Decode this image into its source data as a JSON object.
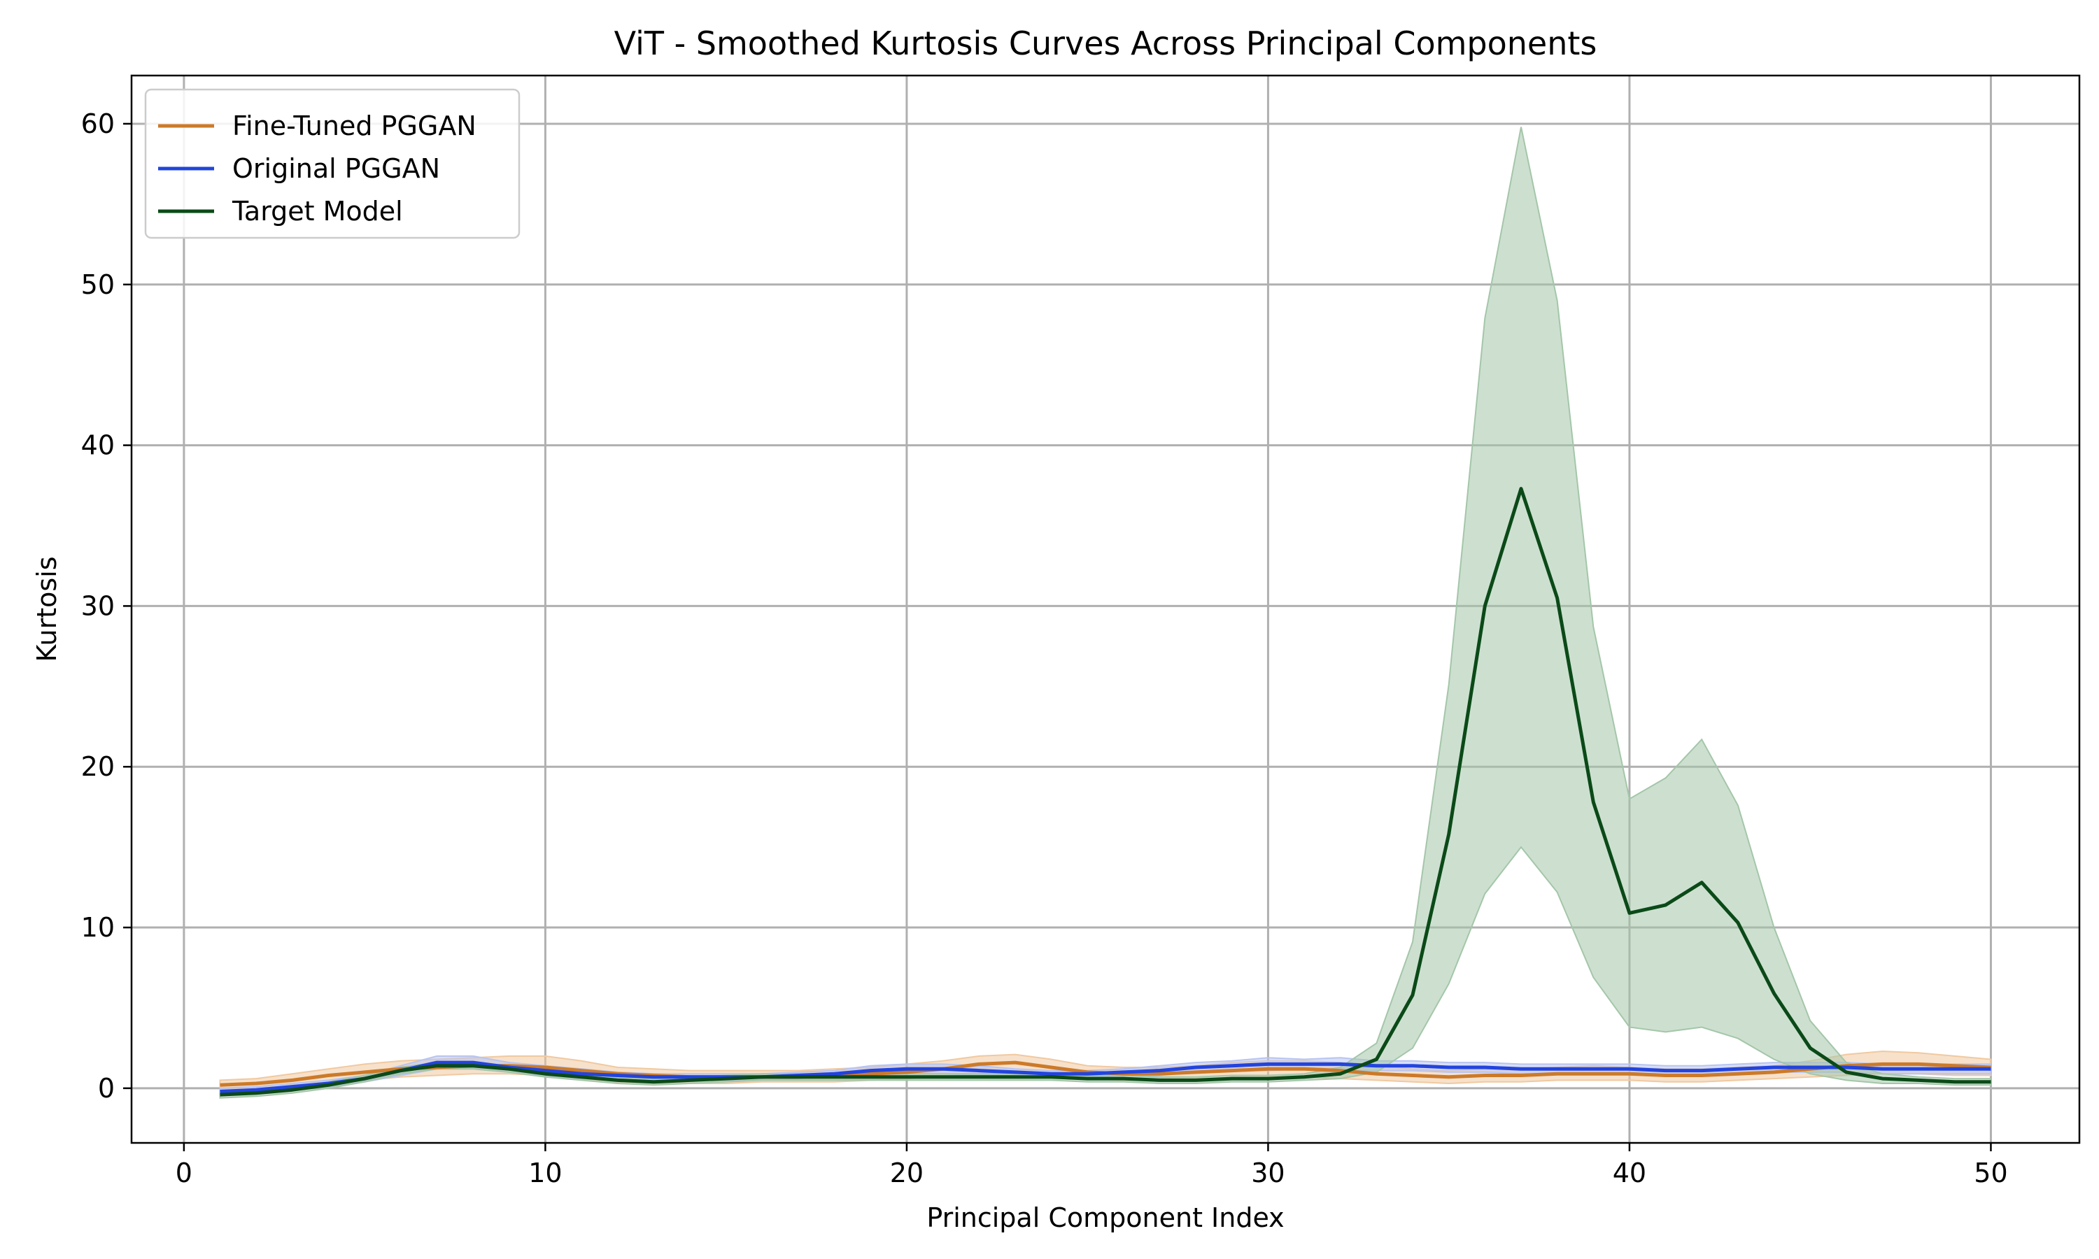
{
  "chart_data": {
    "type": "line",
    "title": "ViT - Smoothed Kurtosis Curves Across Principal Components",
    "xlabel": "Principal Component Index",
    "ylabel": "Kurtosis",
    "xlim": [
      -1.45,
      52.45
    ],
    "ylim": [
      -3.4,
      63.0
    ],
    "xticks": [
      0,
      10,
      20,
      30,
      40,
      50
    ],
    "yticks": [
      0,
      10,
      20,
      30,
      40,
      50,
      60
    ],
    "grid": true,
    "legend_position": "upper-left",
    "x": [
      1,
      2,
      3,
      4,
      5,
      6,
      7,
      8,
      9,
      10,
      11,
      12,
      13,
      14,
      15,
      16,
      17,
      18,
      19,
      20,
      21,
      22,
      23,
      24,
      25,
      26,
      27,
      28,
      29,
      30,
      31,
      32,
      33,
      34,
      35,
      36,
      37,
      38,
      39,
      40,
      41,
      42,
      43,
      44,
      45,
      46,
      47,
      48,
      49,
      50
    ],
    "series": [
      {
        "name": "Fine-Tuned PGGAN",
        "color": "#cc7a29",
        "band_color": "#f0c9a0",
        "values": [
          0.2,
          0.3,
          0.5,
          0.8,
          1.0,
          1.2,
          1.3,
          1.4,
          1.4,
          1.3,
          1.1,
          0.9,
          0.8,
          0.7,
          0.7,
          0.7,
          0.7,
          0.8,
          0.9,
          1.0,
          1.2,
          1.5,
          1.6,
          1.3,
          1.0,
          0.9,
          0.9,
          1.0,
          1.1,
          1.2,
          1.2,
          1.1,
          0.9,
          0.8,
          0.7,
          0.8,
          0.8,
          0.9,
          0.9,
          0.9,
          0.8,
          0.8,
          0.9,
          1.0,
          1.2,
          1.4,
          1.5,
          1.5,
          1.4,
          1.3
        ],
        "lower": [
          -0.1,
          0.0,
          0.1,
          0.3,
          0.5,
          0.7,
          0.8,
          0.9,
          0.9,
          0.8,
          0.6,
          0.4,
          0.3,
          0.3,
          0.3,
          0.4,
          0.4,
          0.4,
          0.5,
          0.6,
          0.7,
          0.9,
          1.0,
          0.8,
          0.6,
          0.5,
          0.5,
          0.6,
          0.6,
          0.7,
          0.7,
          0.6,
          0.5,
          0.4,
          0.3,
          0.4,
          0.4,
          0.5,
          0.5,
          0.5,
          0.4,
          0.4,
          0.5,
          0.6,
          0.7,
          0.8,
          0.9,
          0.9,
          0.8,
          0.8
        ],
        "upper": [
          0.5,
          0.6,
          0.9,
          1.2,
          1.5,
          1.7,
          1.8,
          1.9,
          2.0,
          2.0,
          1.7,
          1.3,
          1.2,
          1.1,
          1.1,
          1.1,
          1.1,
          1.2,
          1.3,
          1.5,
          1.7,
          2.0,
          2.1,
          1.8,
          1.4,
          1.3,
          1.3,
          1.4,
          1.6,
          1.7,
          1.7,
          1.6,
          1.4,
          1.2,
          1.1,
          1.2,
          1.2,
          1.3,
          1.4,
          1.3,
          1.2,
          1.2,
          1.3,
          1.4,
          1.7,
          2.1,
          2.3,
          2.2,
          2.0,
          1.8
        ]
      },
      {
        "name": "Original PGGAN",
        "color": "#2244dd",
        "band_color": "#b8c4f0",
        "values": [
          -0.2,
          -0.1,
          0.1,
          0.3,
          0.6,
          1.1,
          1.6,
          1.6,
          1.3,
          1.1,
          0.9,
          0.8,
          0.7,
          0.7,
          0.7,
          0.7,
          0.8,
          0.9,
          1.1,
          1.2,
          1.2,
          1.1,
          1.0,
          0.9,
          0.9,
          1.0,
          1.1,
          1.3,
          1.4,
          1.5,
          1.5,
          1.5,
          1.4,
          1.4,
          1.3,
          1.3,
          1.2,
          1.2,
          1.2,
          1.2,
          1.1,
          1.1,
          1.2,
          1.3,
          1.3,
          1.3,
          1.2,
          1.2,
          1.2,
          1.2
        ],
        "lower": [
          -0.4,
          -0.3,
          -0.1,
          0.1,
          0.4,
          0.8,
          1.2,
          1.2,
          1.0,
          0.8,
          0.6,
          0.6,
          0.5,
          0.5,
          0.5,
          0.5,
          0.6,
          0.7,
          0.8,
          0.9,
          0.9,
          0.8,
          0.8,
          0.7,
          0.7,
          0.8,
          0.8,
          1.0,
          1.1,
          1.1,
          1.2,
          1.1,
          1.1,
          1.1,
          1.0,
          1.0,
          0.9,
          0.9,
          0.9,
          0.9,
          0.8,
          0.8,
          0.9,
          1.0,
          1.0,
          1.0,
          0.9,
          0.9,
          0.9,
          0.9
        ],
        "upper": [
          0.0,
          0.1,
          0.3,
          0.5,
          0.8,
          1.4,
          2.0,
          2.0,
          1.6,
          1.4,
          1.2,
          1.0,
          0.9,
          0.9,
          0.9,
          0.9,
          1.0,
          1.1,
          1.4,
          1.5,
          1.5,
          1.4,
          1.2,
          1.1,
          1.1,
          1.2,
          1.4,
          1.6,
          1.7,
          1.9,
          1.8,
          1.9,
          1.7,
          1.7,
          1.6,
          1.6,
          1.5,
          1.5,
          1.5,
          1.5,
          1.4,
          1.4,
          1.5,
          1.6,
          1.6,
          1.6,
          1.5,
          1.5,
          1.5,
          1.5
        ]
      },
      {
        "name": "Target Model",
        "color": "#0b4a18",
        "band_color": "#a4c6a9",
        "values": [
          -0.4,
          -0.3,
          -0.1,
          0.2,
          0.6,
          1.1,
          1.4,
          1.4,
          1.2,
          0.9,
          0.7,
          0.5,
          0.4,
          0.5,
          0.6,
          0.7,
          0.7,
          0.7,
          0.7,
          0.7,
          0.7,
          0.7,
          0.7,
          0.7,
          0.6,
          0.6,
          0.5,
          0.5,
          0.6,
          0.6,
          0.7,
          0.9,
          1.8,
          5.8,
          15.8,
          30.0,
          37.3,
          30.5,
          17.8,
          10.9,
          11.4,
          12.8,
          10.3,
          5.9,
          2.5,
          1.0,
          0.6,
          0.5,
          0.4,
          0.4
        ],
        "lower": [
          -0.6,
          -0.5,
          -0.3,
          0.0,
          0.4,
          0.9,
          1.2,
          1.2,
          1.0,
          0.7,
          0.5,
          0.3,
          0.2,
          0.3,
          0.4,
          0.5,
          0.5,
          0.5,
          0.5,
          0.5,
          0.5,
          0.5,
          0.5,
          0.5,
          0.4,
          0.4,
          0.3,
          0.3,
          0.4,
          0.4,
          0.5,
          0.6,
          1.0,
          2.5,
          6.5,
          12.1,
          15.0,
          12.2,
          6.9,
          3.8,
          3.5,
          3.8,
          3.1,
          1.8,
          0.9,
          0.5,
          0.3,
          0.3,
          0.2,
          0.2
        ],
        "upper": [
          -0.2,
          -0.1,
          0.1,
          0.4,
          0.8,
          1.3,
          1.6,
          1.6,
          1.4,
          1.1,
          0.9,
          0.7,
          0.6,
          0.7,
          0.8,
          0.9,
          0.9,
          0.9,
          0.9,
          0.9,
          0.9,
          0.9,
          0.9,
          0.9,
          0.8,
          0.8,
          0.7,
          0.7,
          0.8,
          0.8,
          0.9,
          1.3,
          2.8,
          9.1,
          25.1,
          47.9,
          59.8,
          49.0,
          28.7,
          18.0,
          19.3,
          21.7,
          17.6,
          10.0,
          4.2,
          1.6,
          0.9,
          0.7,
          0.6,
          0.6
        ]
      }
    ]
  }
}
